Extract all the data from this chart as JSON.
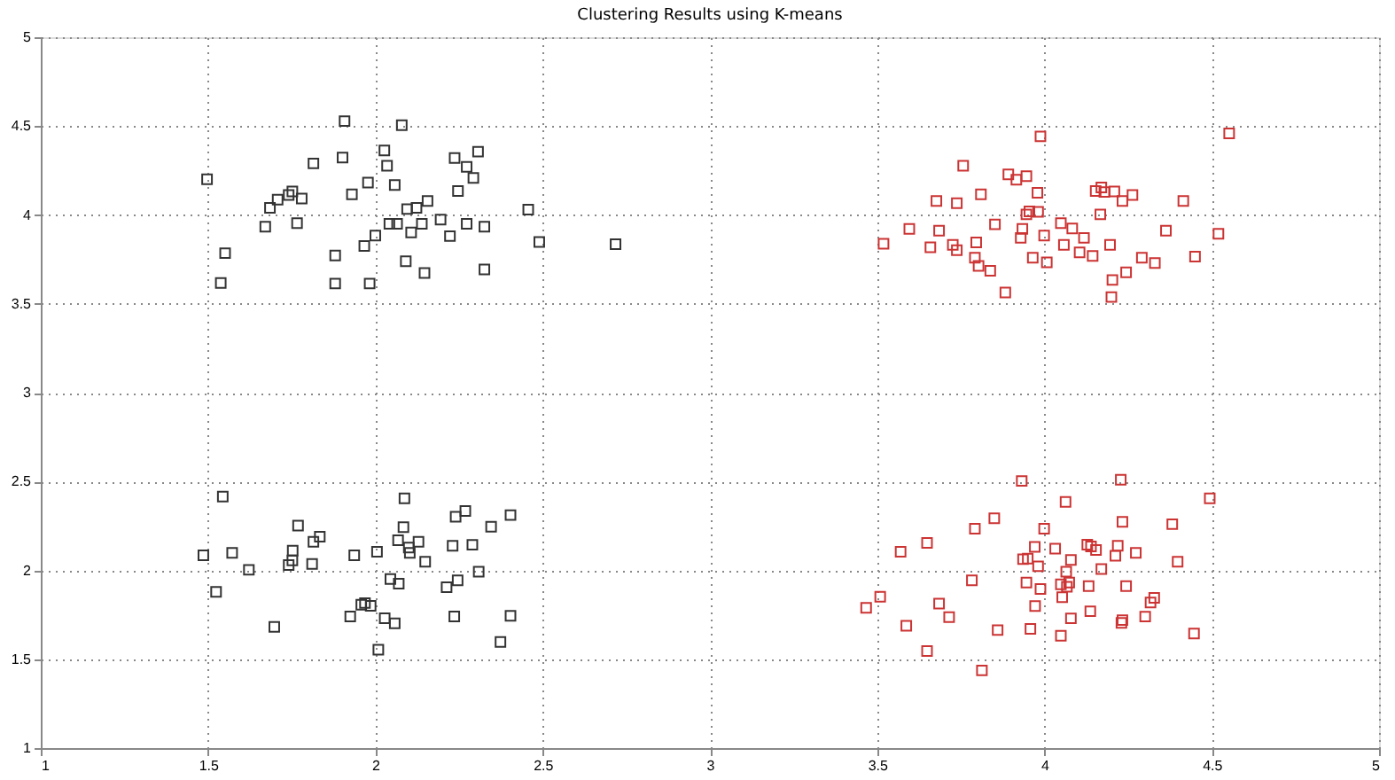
{
  "chart_data": {
    "type": "scatter",
    "title": "Clustering Results using K-means",
    "xlim": [
      1,
      5
    ],
    "xticks": [
      1,
      1.5,
      2,
      2.5,
      3,
      3.5,
      4,
      4.5,
      5
    ],
    "ylim": [
      1,
      5
    ],
    "yticks": [
      1,
      1.5,
      2,
      2.5,
      3,
      3.5,
      4,
      4.5,
      5
    ],
    "grid": true,
    "legend": false,
    "marker": "square",
    "series": [
      {
        "color": "#333333",
        "x": [
          1.908,
          2.079,
          1.497,
          1.815,
          1.902,
          2.027,
          2.035,
          2.307,
          2.237,
          2.273,
          2.293,
          2.247,
          1.978,
          1.93,
          2.058,
          1.752,
          1.741,
          1.708,
          1.78,
          1.685,
          1.671,
          1.766,
          2.095,
          2.123,
          2.156,
          2.042,
          2.065,
          2.139,
          2.107,
          2.195,
          2.223,
          2.273,
          2.326,
          2.457,
          2.49,
          2.718,
          2.0,
          1.967,
          1.88,
          1.551,
          1.538,
          1.88,
          1.983,
          2.091,
          2.147,
          2.326,
          1.544,
          2.087,
          2.269,
          2.24,
          2.404,
          2.346,
          1.769,
          1.834,
          1.815,
          2.084,
          2.068,
          2.129,
          2.1,
          2.103,
          2.231,
          2.29,
          2.149,
          1.486,
          1.572,
          1.753,
          1.752,
          1.741,
          1.811,
          1.937,
          2.005,
          1.622,
          1.524,
          2.045,
          2.07,
          2.213,
          2.246,
          2.309,
          1.698,
          1.925,
          1.958,
          1.969,
          1.986,
          2.028,
          2.058,
          2.009,
          2.236,
          2.404,
          2.374
        ],
        "values": [
          4.528,
          4.505,
          4.201,
          4.29,
          4.323,
          4.363,
          4.277,
          4.356,
          4.32,
          4.271,
          4.208,
          4.135,
          4.182,
          4.116,
          4.168,
          4.132,
          4.112,
          4.086,
          4.092,
          4.04,
          3.934,
          3.954,
          4.033,
          4.04,
          4.079,
          3.95,
          3.95,
          3.95,
          3.901,
          3.974,
          3.881,
          3.95,
          3.934,
          4.03,
          3.848,
          3.835,
          3.884,
          3.825,
          3.772,
          3.785,
          3.617,
          3.614,
          3.614,
          3.739,
          3.673,
          3.693,
          2.415,
          2.405,
          2.334,
          2.302,
          2.311,
          2.246,
          2.252,
          2.19,
          2.161,
          2.243,
          2.17,
          2.161,
          2.128,
          2.098,
          2.138,
          2.144,
          2.049,
          2.085,
          2.098,
          2.111,
          2.056,
          2.03,
          2.036,
          2.085,
          2.105,
          2.003,
          1.879,
          1.951,
          1.925,
          1.905,
          1.944,
          1.993,
          1.682,
          1.741,
          1.807,
          1.816,
          1.8,
          1.731,
          1.702,
          1.554,
          1.741,
          1.744,
          1.597
        ]
      },
      {
        "color": "#cc3333",
        "x": [
          3.988,
          4.552,
          3.757,
          3.892,
          3.916,
          3.946,
          3.979,
          3.81,
          3.677,
          3.738,
          4.17,
          4.153,
          4.179,
          4.209,
          4.263,
          4.233,
          4.415,
          4.167,
          3.946,
          3.955,
          3.981,
          3.852,
          3.934,
          3.929,
          3.999,
          4.049,
          4.083,
          4.118,
          3.596,
          3.685,
          3.519,
          3.659,
          3.726,
          3.738,
          3.796,
          3.792,
          3.803,
          3.838,
          3.883,
          3.965,
          4.007,
          4.058,
          4.105,
          4.144,
          4.196,
          4.363,
          4.52,
          4.45,
          4.291,
          4.33,
          4.244,
          4.203,
          4.2,
          3.932,
          4.228,
          4.494,
          4.063,
          3.85,
          3.792,
          3.999,
          4.233,
          4.382,
          3.57,
          3.649,
          3.971,
          4.032,
          4.128,
          4.139,
          4.154,
          4.219,
          4.212,
          4.273,
          4.398,
          3.936,
          3.95,
          3.981,
          4.079,
          4.065,
          4.17,
          3.783,
          3.946,
          3.988,
          4.049,
          4.074,
          4.067,
          4.132,
          4.244,
          4.053,
          3.509,
          3.467,
          3.685,
          3.715,
          3.972,
          4.137,
          4.079,
          4.328,
          4.317,
          4.301,
          4.233,
          4.23,
          3.587,
          3.86,
          3.958,
          4.049,
          4.447,
          3.649,
          3.813
        ],
        "values": [
          4.442,
          4.459,
          4.277,
          4.228,
          4.198,
          4.218,
          4.125,
          4.116,
          4.079,
          4.066,
          4.155,
          4.135,
          4.129,
          4.132,
          4.112,
          4.079,
          4.079,
          4.003,
          4.003,
          4.02,
          4.017,
          3.947,
          3.921,
          3.871,
          3.884,
          3.954,
          3.924,
          3.871,
          3.921,
          3.911,
          3.838,
          3.818,
          3.832,
          3.802,
          3.845,
          3.759,
          3.713,
          3.686,
          3.564,
          3.759,
          3.733,
          3.832,
          3.789,
          3.769,
          3.832,
          3.911,
          3.894,
          3.766,
          3.759,
          3.729,
          3.677,
          3.634,
          3.538,
          2.503,
          2.51,
          2.405,
          2.385,
          2.293,
          2.234,
          2.234,
          2.273,
          2.26,
          2.105,
          2.155,
          2.132,
          2.122,
          2.145,
          2.135,
          2.115,
          2.138,
          2.082,
          2.099,
          2.049,
          2.063,
          2.066,
          2.023,
          2.059,
          1.993,
          2.007,
          1.944,
          1.931,
          1.895,
          1.921,
          1.931,
          1.908,
          1.911,
          1.911,
          1.849,
          1.852,
          1.789,
          1.813,
          1.737,
          1.799,
          1.77,
          1.73,
          1.845,
          1.819,
          1.74,
          1.72,
          1.704,
          1.688,
          1.664,
          1.671,
          1.632,
          1.645,
          1.546,
          1.437
        ]
      }
    ]
  }
}
